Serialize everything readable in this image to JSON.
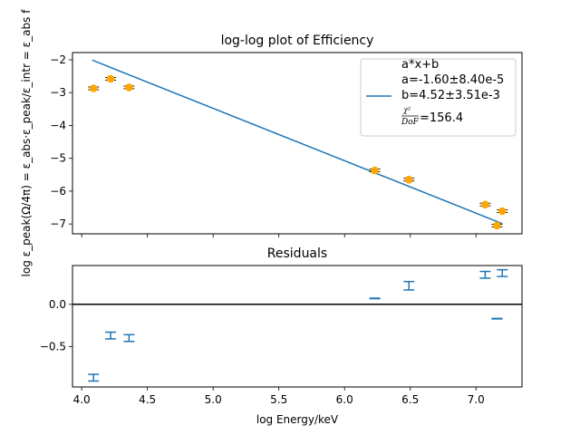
{
  "chart_data": [
    {
      "type": "scatter",
      "title": "log-log plot of Efficiency",
      "xlabel": "",
      "ylabel": "log ε_peak(Ω/4π) = ε_abs·ε_peak/ε_intr = ε_abs f",
      "xlim": [
        3.93,
        7.35
      ],
      "ylim": [
        -7.3,
        -1.78
      ],
      "xticks": [
        4.0,
        4.5,
        5.0,
        5.5,
        6.0,
        6.5,
        7.0
      ],
      "yticks": [
        -2,
        -3,
        -4,
        -5,
        -6,
        -7
      ],
      "ytick_labels": [
        "−2",
        "−3",
        "−4",
        "−5",
        "−6",
        "−7"
      ],
      "series": [
        {
          "name": "",
          "kind": "points",
          "color": "#ffa500",
          "x": [
            4.09,
            4.22,
            4.36,
            6.23,
            6.49,
            7.07,
            7.16,
            7.2
          ],
          "y": [
            -2.87,
            -2.58,
            -2.84,
            -5.37,
            -5.65,
            -6.41,
            -7.05,
            -6.61
          ]
        },
        {
          "name": "a*x+b",
          "kind": "fit-line",
          "color": "#1f77b4",
          "x": [
            4.08,
            7.2
          ],
          "y": [
            -2.01,
            -6.99
          ]
        }
      ],
      "legend": {
        "position": "top-right",
        "lines": [
          "a*x+b",
          "a=-1.60±8.40e-5",
          "b=4.52±3.51e-3",
          "χ²/DoF=156.4"
        ],
        "chi_num": "χ²",
        "chi_den": "DoF",
        "chi_value": "=156.4"
      }
    },
    {
      "type": "scatter",
      "title": "Residuals",
      "xlabel": "log Energy/keV",
      "ylabel": "",
      "xlim": [
        3.93,
        7.35
      ],
      "ylim": [
        -0.98,
        0.46
      ],
      "xticks": [
        4.0,
        4.5,
        5.0,
        5.5,
        6.0,
        6.5,
        7.0
      ],
      "xtick_labels": [
        "4.0",
        "4.5",
        "5.0",
        "5.5",
        "6.0",
        "6.5",
        "7.0"
      ],
      "yticks": [
        0.0,
        -0.5
      ],
      "ytick_labels": [
        "0.0",
        "−0.5"
      ],
      "zero_line": true,
      "series": [
        {
          "name": "",
          "kind": "errorbars",
          "color": "#1f77b4",
          "x": [
            4.09,
            4.22,
            4.36,
            6.23,
            6.49,
            7.07,
            7.16,
            7.2
          ],
          "y": [
            -0.87,
            -0.37,
            -0.4,
            0.07,
            0.22,
            0.35,
            -0.17,
            0.37
          ],
          "yerr": [
            0.04,
            0.04,
            0.04,
            0.003,
            0.05,
            0.04,
            0.003,
            0.04
          ]
        }
      ]
    }
  ]
}
